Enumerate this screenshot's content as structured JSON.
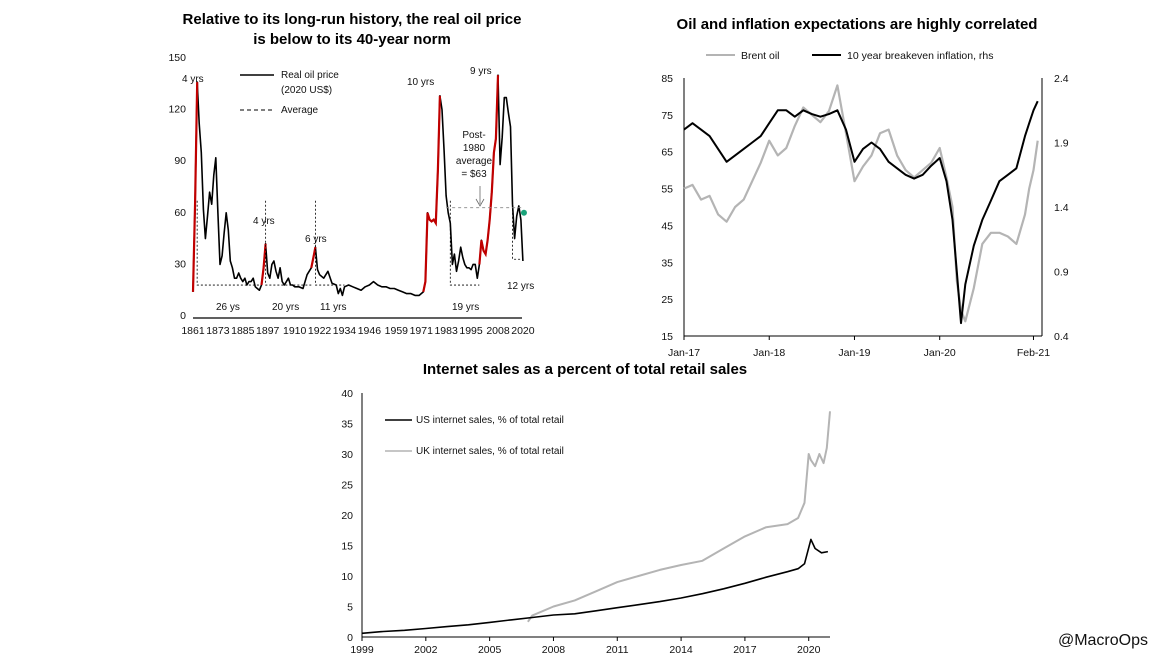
{
  "watermark": "@MacroOps",
  "colors": {
    "black": "#000000",
    "red": "#c00000",
    "grey": "#b4b4b4",
    "green": "#1aa37a"
  },
  "chart_data": [
    {
      "id": "oil",
      "type": "line",
      "title_line1": "Relative to its long-run history, the real oil price",
      "title_line2": "is below to its 40-year norm",
      "xlim": [
        1861,
        2021
      ],
      "ylim": [
        0,
        150
      ],
      "x_ticks": [
        "1861",
        "1873",
        "1885",
        "1897",
        "1910",
        "1922",
        "1934",
        "1946",
        "1959",
        "1971",
        "1983",
        "1995",
        "2008",
        "2020"
      ],
      "y_ticks": [
        0,
        30,
        60,
        90,
        120,
        150
      ],
      "legend": [
        "Real oil price (2020 US$)",
        "Average"
      ],
      "legend_line2": "(2020 US$)",
      "legend_line1": "Real oil price",
      "average_label": "Average",
      "series": [
        {
          "name": "Real oil price",
          "x": [
            1861,
            1862,
            1863,
            1864,
            1865,
            1866,
            1867,
            1868,
            1869,
            1870,
            1871,
            1872,
            1873,
            1874,
            1875,
            1876,
            1877,
            1878,
            1879,
            1880,
            1881,
            1882,
            1883,
            1884,
            1885,
            1886,
            1887,
            1888,
            1889,
            1890,
            1891,
            1892,
            1893,
            1894,
            1895,
            1896,
            1897,
            1898,
            1899,
            1900,
            1901,
            1902,
            1903,
            1904,
            1905,
            1906,
            1907,
            1908,
            1909,
            1910,
            1912,
            1914,
            1916,
            1918,
            1919,
            1920,
            1921,
            1922,
            1924,
            1926,
            1928,
            1930,
            1931,
            1932,
            1933,
            1934,
            1936,
            1938,
            1940,
            1942,
            1944,
            1946,
            1948,
            1950,
            1952,
            1954,
            1956,
            1958,
            1960,
            1962,
            1964,
            1966,
            1968,
            1970,
            1972,
            1973,
            1974,
            1975,
            1976,
            1977,
            1978,
            1979,
            1980,
            1981,
            1982,
            1983,
            1984,
            1985,
            1986,
            1987,
            1988,
            1989,
            1990,
            1991,
            1992,
            1993,
            1994,
            1995,
            1996,
            1997,
            1998,
            1999,
            2000,
            2001,
            2002,
            2003,
            2004,
            2005,
            2006,
            2007,
            2008,
            2009,
            2010,
            2011,
            2012,
            2013,
            2014,
            2015,
            2016,
            2017,
            2018,
            2019,
            2020
          ],
          "y": [
            14,
            66,
            136,
            112,
            95,
            62,
            45,
            58,
            72,
            65,
            82,
            92,
            60,
            30,
            35,
            48,
            60,
            50,
            32,
            28,
            22,
            22,
            25,
            22,
            20,
            22,
            18,
            20,
            20,
            22,
            17,
            16,
            15,
            18,
            28,
            42,
            25,
            22,
            30,
            32,
            26,
            22,
            28,
            20,
            18,
            20,
            22,
            18,
            18,
            17,
            17,
            16,
            24,
            28,
            34,
            40,
            27,
            24,
            22,
            26,
            19,
            18,
            13,
            16,
            12,
            17,
            18,
            17,
            16,
            15,
            17,
            18,
            20,
            18,
            17,
            17,
            16,
            16,
            15,
            14,
            13,
            13,
            12,
            12,
            14,
            20,
            60,
            56,
            55,
            56,
            54,
            85,
            128,
            120,
            96,
            70,
            60,
            54,
            30,
            36,
            26,
            32,
            40,
            34,
            30,
            28,
            28,
            27,
            30,
            30,
            22,
            30,
            44,
            38,
            36,
            44,
            56,
            72,
            95,
            103,
            140,
            88,
            104,
            127,
            127,
            118,
            110,
            65,
            45,
            58,
            64,
            56,
            32
          ]
        }
      ],
      "annotations": {
        "peaks": [
          "4 yrs",
          "4 yrs",
          "6 yrs",
          "10 yrs",
          "9 yrs"
        ],
        "troughs": [
          "26 ys",
          "20 yrs",
          "11 yrs",
          "19 yrs",
          "12 yrs"
        ],
        "post1980_lines": [
          "Post-",
          "1980",
          "average",
          "= $63"
        ]
      }
    },
    {
      "id": "corr",
      "type": "line",
      "title": "Oil and inflation expectations are highly correlated",
      "x_ticks": [
        "Jan-17",
        "Jan-18",
        "Jan-19",
        "Jan-20",
        "Feb-21"
      ],
      "y_left_ticks": [
        "15",
        "25",
        "35",
        "45",
        "55",
        "65",
        "75",
        "85"
      ],
      "y_right_ticks": [
        "0.4",
        "0.9",
        "1.4",
        "1.9",
        "2.4"
      ],
      "ylim_left": [
        15,
        85
      ],
      "ylim_right": [
        0.4,
        2.4
      ],
      "xlim": [
        2017.0,
        2021.2
      ],
      "legend": [
        "Brent oil",
        "10 year breakeven inflation, rhs"
      ],
      "series": [
        {
          "name": "Brent oil",
          "x": [
            2017.0,
            2017.1,
            2017.2,
            2017.3,
            2017.4,
            2017.5,
            2017.6,
            2017.7,
            2017.8,
            2017.9,
            2018.0,
            2018.1,
            2018.2,
            2018.3,
            2018.4,
            2018.5,
            2018.6,
            2018.7,
            2018.8,
            2018.9,
            2019.0,
            2019.1,
            2019.2,
            2019.3,
            2019.4,
            2019.5,
            2019.6,
            2019.7,
            2019.8,
            2019.9,
            2020.0,
            2020.08,
            2020.15,
            2020.2,
            2020.25,
            2020.3,
            2020.4,
            2020.5,
            2020.6,
            2020.7,
            2020.8,
            2020.9,
            2021.0,
            2021.05,
            2021.1,
            2021.15
          ],
          "y": [
            55,
            56,
            52,
            53,
            48,
            46,
            50,
            52,
            57,
            62,
            68,
            64,
            66,
            72,
            77,
            75,
            73,
            76,
            83,
            70,
            57,
            61,
            64,
            70,
            71,
            64,
            60,
            58,
            60,
            62,
            66,
            58,
            50,
            30,
            22,
            19,
            28,
            40,
            43,
            43,
            42,
            40,
            48,
            55,
            60,
            68
          ]
        },
        {
          "name": "10 year breakeven inflation, rhs",
          "x": [
            2017.0,
            2017.1,
            2017.2,
            2017.3,
            2017.4,
            2017.5,
            2017.6,
            2017.7,
            2017.8,
            2017.9,
            2018.0,
            2018.1,
            2018.2,
            2018.3,
            2018.4,
            2018.5,
            2018.6,
            2018.7,
            2018.8,
            2018.9,
            2019.0,
            2019.1,
            2019.2,
            2019.3,
            2019.4,
            2019.5,
            2019.6,
            2019.7,
            2019.8,
            2019.9,
            2020.0,
            2020.08,
            2020.15,
            2020.2,
            2020.25,
            2020.3,
            2020.4,
            2020.5,
            2020.6,
            2020.7,
            2020.8,
            2020.9,
            2021.0,
            2021.05,
            2021.1,
            2021.15
          ],
          "y": [
            2.0,
            2.05,
            2.0,
            1.95,
            1.85,
            1.75,
            1.8,
            1.85,
            1.9,
            1.95,
            2.05,
            2.15,
            2.15,
            2.1,
            2.15,
            2.12,
            2.1,
            2.12,
            2.15,
            2.0,
            1.75,
            1.85,
            1.9,
            1.85,
            1.75,
            1.7,
            1.65,
            1.62,
            1.65,
            1.72,
            1.78,
            1.6,
            1.3,
            0.9,
            0.5,
            0.8,
            1.1,
            1.3,
            1.45,
            1.6,
            1.65,
            1.7,
            1.95,
            2.05,
            2.15,
            2.22
          ]
        }
      ]
    },
    {
      "id": "internet",
      "type": "line",
      "title": "Internet sales as a percent of total retail sales",
      "x_ticks": [
        "1999",
        "2002",
        "2005",
        "2008",
        "2011",
        "2014",
        "2017",
        "2020"
      ],
      "y_ticks": [
        0,
        5,
        10,
        15,
        20,
        25,
        30,
        35,
        40
      ],
      "xlim": [
        1999,
        2021
      ],
      "ylim": [
        0,
        40
      ],
      "legend": [
        "US internet sales, % of total retail",
        "UK internet sales, % of total retail"
      ],
      "series": [
        {
          "name": "US internet sales, % of total retail",
          "x": [
            1999,
            2000,
            2001,
            2002,
            2003,
            2004,
            2005,
            2006,
            2007,
            2008,
            2009,
            2010,
            2011,
            2012,
            2013,
            2014,
            2015,
            2016,
            2017,
            2018,
            2019,
            2019.5,
            2019.8,
            2020.1,
            2020.3,
            2020.6,
            2020.9
          ],
          "y": [
            0.6,
            0.9,
            1.1,
            1.4,
            1.7,
            2.0,
            2.4,
            2.8,
            3.2,
            3.6,
            3.8,
            4.3,
            4.8,
            5.3,
            5.8,
            6.4,
            7.1,
            7.9,
            8.8,
            9.8,
            10.7,
            11.2,
            12.0,
            16.0,
            14.5,
            13.8,
            14.0
          ]
        },
        {
          "name": "UK internet sales, % of total retail",
          "x": [
            2006.8,
            2007,
            2008,
            2009,
            2010,
            2011,
            2012,
            2013,
            2014,
            2015,
            2016,
            2017,
            2018,
            2019,
            2019.5,
            2019.8,
            2020.0,
            2020.1,
            2020.3,
            2020.5,
            2020.7,
            2020.85,
            2021.0
          ],
          "y": [
            2.5,
            3.5,
            5.0,
            6.0,
            7.5,
            9.0,
            10.0,
            11.0,
            11.8,
            12.5,
            14.5,
            16.5,
            18.0,
            18.5,
            19.5,
            22.0,
            30.0,
            29.0,
            28.0,
            30.0,
            28.5,
            31.0,
            37.0
          ]
        }
      ]
    }
  ]
}
